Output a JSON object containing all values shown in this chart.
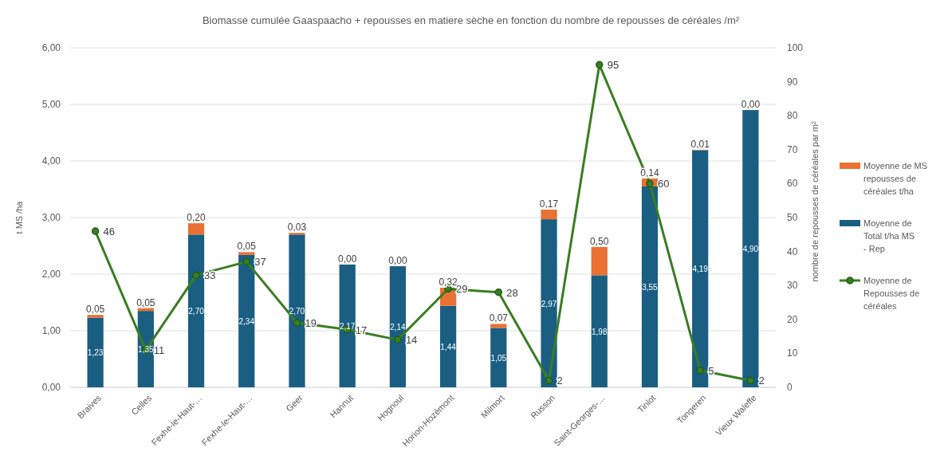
{
  "chart_data": {
    "type": "bar",
    "title": "Biomasse cumulée Gaaspaacho + repousses en matiere sèche en fonction du nombre de repousses de céréales /m²",
    "ylabel": "t MS /ha",
    "y2label": "nombre de repousses de céréales par m²",
    "categories": [
      "Braives",
      "Celles",
      "Fexhe-le-Haut-…",
      "Fexhe-le-Haut-…",
      "Geer",
      "Hannut",
      "Hognoul",
      "Horion-Hozémont",
      "Milmort",
      "Russon",
      "Saint-Georges-…",
      "Tinlot",
      "Tongeren",
      "Vieux Waleffe"
    ],
    "stacked": true,
    "series": [
      {
        "name": "Moyenne de Total t/ha MS - Rep",
        "color": "#1a5e82",
        "values": [
          1.23,
          1.35,
          2.7,
          2.34,
          2.7,
          2.17,
          2.14,
          1.44,
          1.05,
          2.97,
          1.98,
          3.55,
          4.19,
          4.9
        ],
        "value_labels": [
          "1,23",
          "1,35",
          "2,70",
          "2,34",
          "2,70",
          "2,17",
          "2,14",
          "1,44",
          "1,05",
          "2,97",
          "1,98",
          "3,55",
          "4,19",
          "4,90"
        ]
      },
      {
        "name": "Moyenne de MS repousses de céréales t/ha",
        "color": "#e97132",
        "values": [
          0.05,
          0.05,
          0.2,
          0.05,
          0.03,
          0.0,
          0.0,
          0.32,
          0.07,
          0.17,
          0.5,
          0.14,
          0.01,
          0.0
        ],
        "value_labels": [
          "0,05",
          "0,05",
          "0,20",
          "0,05",
          "0,03",
          "0,00",
          "0,00",
          "0,32",
          "0,07",
          "0,17",
          "0,50",
          "0,14",
          "0,01",
          "0,00"
        ]
      },
      {
        "name": "Moyenne de Repousses de céréales",
        "type": "line",
        "axis": "y2",
        "color": "#3a7d22",
        "marker": "circle",
        "values": [
          46,
          11,
          33,
          37,
          19,
          17,
          14,
          29,
          28,
          2,
          95,
          60,
          5,
          2
        ],
        "value_labels": [
          "46",
          "11",
          "33",
          "37",
          "19",
          "17",
          "14",
          "29",
          "28",
          "2",
          "95",
          "60",
          "5",
          "2"
        ]
      }
    ],
    "ylim": [
      0,
      6
    ],
    "yticks": [
      {
        "value": 0,
        "label": "0,00"
      },
      {
        "value": 1,
        "label": "1,00"
      },
      {
        "value": 2,
        "label": "2,00"
      },
      {
        "value": 3,
        "label": "3,00"
      },
      {
        "value": 4,
        "label": "4,00"
      },
      {
        "value": 5,
        "label": "5,00"
      },
      {
        "value": 6,
        "label": "6,00"
      }
    ],
    "y2lim": [
      0,
      100
    ],
    "y2ticks": [
      0,
      10,
      20,
      30,
      40,
      50,
      60,
      70,
      80,
      90,
      100
    ],
    "grid": "y",
    "legend": "right"
  }
}
